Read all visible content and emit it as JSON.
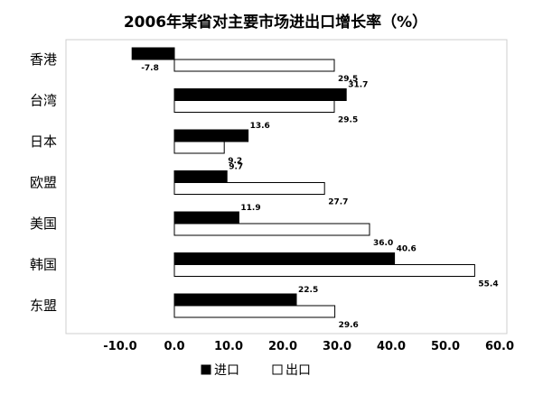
{
  "chart_data": {
    "type": "bar",
    "orientation": "horizontal",
    "title": "2006年某省对主要市场进出口增长率（%）",
    "categories": [
      "香港",
      "台湾",
      "日本",
      "欧盟",
      "美国",
      "韩国",
      "东盟"
    ],
    "series": [
      {
        "name": "进口",
        "values": [
          -7.8,
          31.7,
          13.6,
          9.7,
          11.9,
          40.6,
          22.5
        ],
        "data_labels": [
          "-7.8",
          "31.7",
          "13.6",
          "9.7",
          "11.9",
          "40.6",
          "22.5"
        ],
        "color": "#000000"
      },
      {
        "name": "出口",
        "values": [
          29.5,
          29.5,
          9.2,
          27.7,
          36.0,
          55.4,
          29.6
        ],
        "data_labels": [
          "29.5",
          "29.5",
          "9.2",
          "27.7",
          "36.0",
          "55.4",
          "29.6"
        ],
        "color": "#ffffff"
      }
    ],
    "xlim": [
      -20,
      60
    ],
    "xticks": [
      -10.0,
      0.0,
      10.0,
      20.0,
      30.0,
      40.0,
      50.0,
      60.0
    ],
    "xtick_labels": [
      "-10.0",
      "0.0",
      "10.0",
      "20.0",
      "30.0",
      "40.0",
      "50.0",
      "60.0"
    ],
    "xlabel": "",
    "ylabel": "",
    "grid": false,
    "legend_position": "bottom"
  }
}
